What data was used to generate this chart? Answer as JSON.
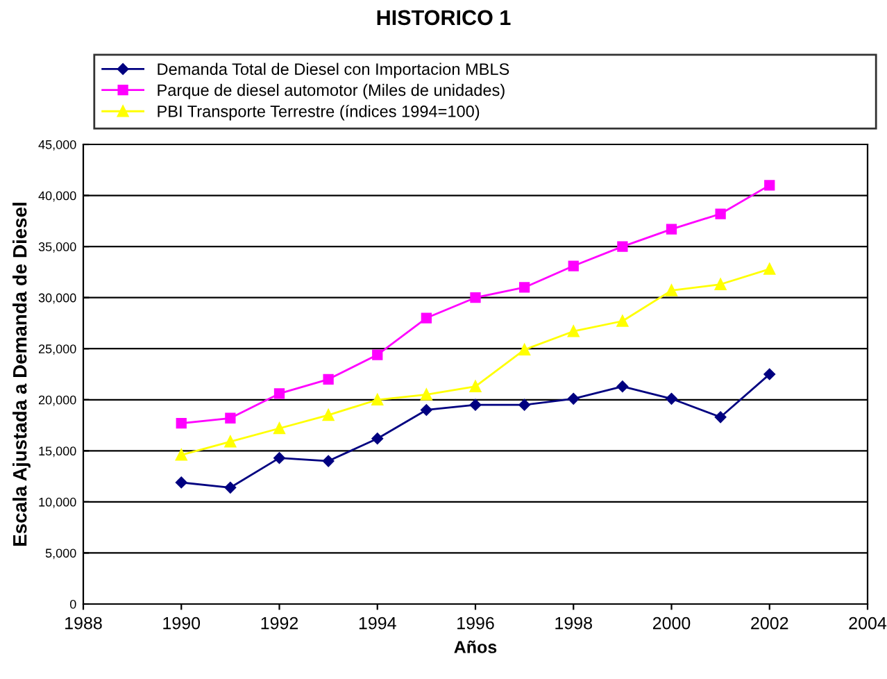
{
  "chart_data": {
    "type": "line",
    "title": "HISTORICO 1",
    "xlabel": "Años",
    "ylabel": "Escala Ajustada a Demanda de Diesel",
    "x": [
      1990,
      1991,
      1992,
      1993,
      1994,
      1995,
      1996,
      1997,
      1998,
      1999,
      2000,
      2001,
      2002
    ],
    "series": [
      {
        "name": "Demanda Total de Diesel con Importacion MBLS",
        "color": "#000080",
        "marker": "diamond",
        "values": [
          11900,
          11400,
          14300,
          14000,
          16200,
          19000,
          19500,
          19500,
          20100,
          21300,
          20100,
          18300,
          22500
        ]
      },
      {
        "name": "Parque de diesel automotor (Miles de unidades)",
        "color": "#ff00ff",
        "marker": "square",
        "values": [
          17700,
          18200,
          20600,
          22000,
          24400,
          28000,
          30000,
          31000,
          33100,
          35000,
          36700,
          38200,
          41000
        ]
      },
      {
        "name": "PBI Transporte Terrestre (índices 1994=100)",
        "color": "#ffff00",
        "marker": "triangle",
        "values": [
          14600,
          15900,
          17200,
          18500,
          20000,
          20500,
          21300,
          24900,
          26700,
          27700,
          30700,
          31300,
          32800
        ]
      }
    ],
    "xlim": [
      1988,
      2004
    ],
    "xticks": [
      1988,
      1990,
      1992,
      1994,
      1996,
      1998,
      2000,
      2002,
      2004
    ],
    "ylim": [
      0,
      45000
    ],
    "yticks": [
      {
        "value": 0,
        "label": "0"
      },
      {
        "value": 5000,
        "label": "5,000"
      },
      {
        "value": 10000,
        "label": "10,000"
      },
      {
        "value": 15000,
        "label": "15,000"
      },
      {
        "value": 20000,
        "label": "20,000"
      },
      {
        "value": 25000,
        "label": "25,000"
      },
      {
        "value": 30000,
        "label": "30,000"
      },
      {
        "value": 35000,
        "label": "35,000"
      },
      {
        "value": 40000,
        "label": "40,000"
      },
      {
        "value": 45000,
        "label": "45,000"
      }
    ],
    "grid": "y",
    "legend": "top",
    "line_style": "solid"
  }
}
